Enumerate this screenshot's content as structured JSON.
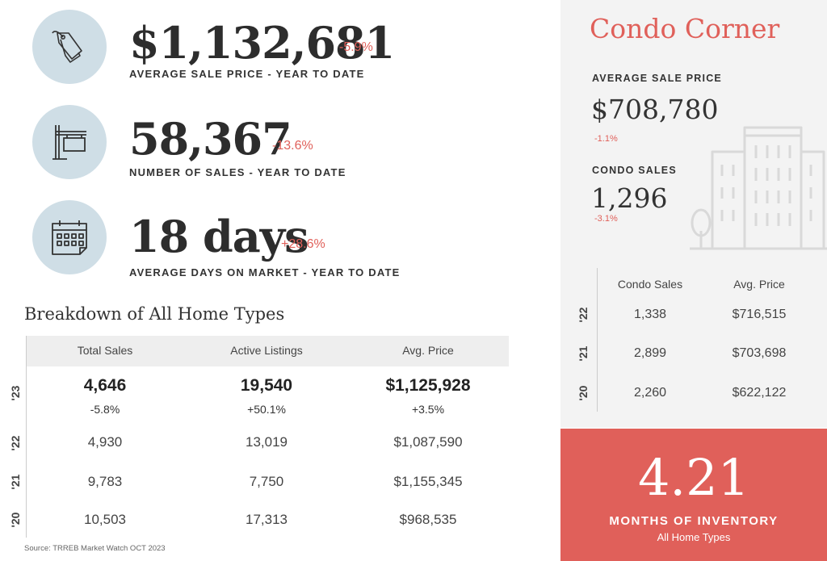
{
  "stats": [
    {
      "value": "$1,132,681",
      "change": "-5.9%",
      "label": "AVERAGE SALE PRICE - YEAR TO DATE",
      "icon": "price-tag-icon"
    },
    {
      "value": "58,367",
      "change": "-13.6%",
      "label": "NUMBER OF SALES - YEAR TO DATE",
      "icon": "for-sale-sign-icon"
    },
    {
      "value": "18 days",
      "change": "+28.6%",
      "label": "AVERAGE DAYS ON MARKET - YEAR TO DATE",
      "icon": "calendar-icon"
    }
  ],
  "breakdown": {
    "title": "Breakdown of All Home Types",
    "headers": [
      "Total Sales",
      "Active Listings",
      "Avg. Price"
    ],
    "rows": [
      {
        "year": "'23",
        "total_sales": "4,646",
        "total_sales_change": "-5.8%",
        "active_listings": "19,540",
        "active_listings_change": "+50.1%",
        "avg_price": "$1,125,928",
        "avg_price_change": "+3.5%"
      },
      {
        "year": "'22",
        "total_sales": "4,930",
        "active_listings": "13,019",
        "avg_price": "$1,087,590"
      },
      {
        "year": "'21",
        "total_sales": "9,783",
        "active_listings": "7,750",
        "avg_price": "$1,155,345"
      },
      {
        "year": "'20",
        "total_sales": "10,503",
        "active_listings": "17,313",
        "avg_price": "$968,535"
      }
    ]
  },
  "source": "Source: TRREB Market Watch OCT 2023",
  "condo": {
    "title": "Condo Corner",
    "avg_price_label": "AVERAGE SALE PRICE",
    "avg_price": "$708,780",
    "avg_price_change": "-1.1%",
    "sales_label": "CONDO SALES",
    "sales": "1,296",
    "sales_change": "-3.1%",
    "headers": [
      "Condo Sales",
      "Avg. Price"
    ],
    "rows": [
      {
        "year": "'22",
        "sales": "1,338",
        "avg_price": "$716,515"
      },
      {
        "year": "'21",
        "sales": "2,899",
        "avg_price": "$703,698"
      },
      {
        "year": "'20",
        "sales": "2,260",
        "avg_price": "$622,122"
      }
    ]
  },
  "inventory": {
    "value": "4.21",
    "label": "MONTHS OF INVENTORY",
    "sublabel": "All Home Types"
  },
  "colors": {
    "accent": "#e0605a",
    "icon_circle": "#cfdee6",
    "panel_bg": "#f3f3f3"
  }
}
